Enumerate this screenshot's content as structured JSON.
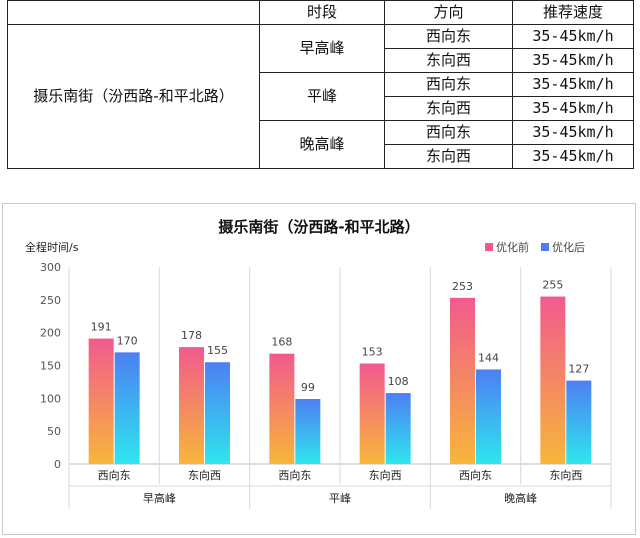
{
  "table": {
    "headers": [
      "时段",
      "方向",
      "推荐速度"
    ],
    "road": "摄乐南街（汾西路-和平北路）",
    "periods": [
      {
        "name": "早高峰",
        "rows": [
          {
            "direction": "西向东",
            "speed": "35-45km/h"
          },
          {
            "direction": "东向西",
            "speed": "35-45km/h"
          }
        ]
      },
      {
        "name": "平峰",
        "rows": [
          {
            "direction": "西向东",
            "speed": "35-45km/h"
          },
          {
            "direction": "东向西",
            "speed": "35-45km/h"
          }
        ]
      },
      {
        "name": "晚高峰",
        "rows": [
          {
            "direction": "西向东",
            "speed": "35-45km/h"
          },
          {
            "direction": "东向西",
            "speed": "35-45km/h"
          }
        ]
      }
    ]
  },
  "chart_data": {
    "type": "bar",
    "title": "摄乐南街（汾西路-和平北路）",
    "ylabel": "全程时间/s",
    "xlabel": "",
    "ylim": [
      0,
      300
    ],
    "yticks": [
      0,
      50,
      100,
      150,
      200,
      250,
      300
    ],
    "categories": [
      "西向东",
      "东向西",
      "西向东",
      "东向西",
      "西向东",
      "东向西"
    ],
    "groups": [
      {
        "name": "早高峰",
        "span": 2
      },
      {
        "name": "平峰",
        "span": 2
      },
      {
        "name": "晚高峰",
        "span": 2
      }
    ],
    "series": [
      {
        "name": "优化前",
        "values": [
          191,
          178,
          168,
          153,
          253,
          255
        ],
        "gradient": [
          "#f25a8e",
          "#f7b63a"
        ]
      },
      {
        "name": "优化后",
        "values": [
          170,
          155,
          99,
          108,
          144,
          127
        ],
        "gradient": [
          "#4d7ff3",
          "#2ee6ee"
        ]
      }
    ],
    "legend": "top-right",
    "grid": false
  }
}
